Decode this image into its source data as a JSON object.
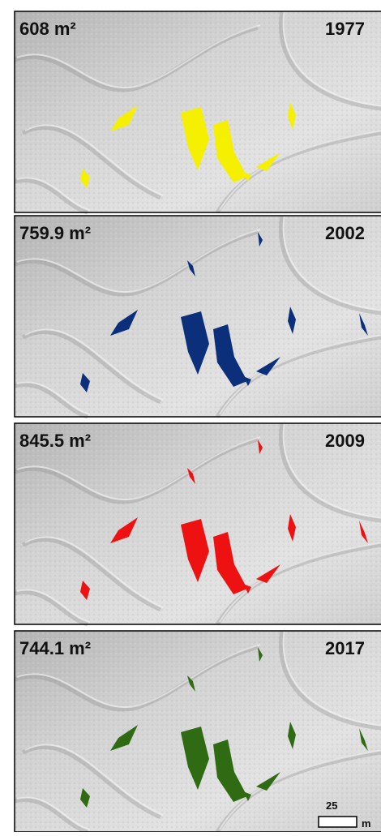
{
  "panels": [
    {
      "area": "608 m²",
      "year": "1977",
      "color": "#f5f000"
    },
    {
      "area": "759.9 m²",
      "year": "2002",
      "color": "#0b2f7a"
    },
    {
      "area": "845.5 m²",
      "year": "2009",
      "color": "#ee1111"
    },
    {
      "area": "744.1 m²",
      "year": "2017",
      "color": "#2f6b12"
    }
  ],
  "scale_bar": {
    "value": "25",
    "unit": "m"
  }
}
